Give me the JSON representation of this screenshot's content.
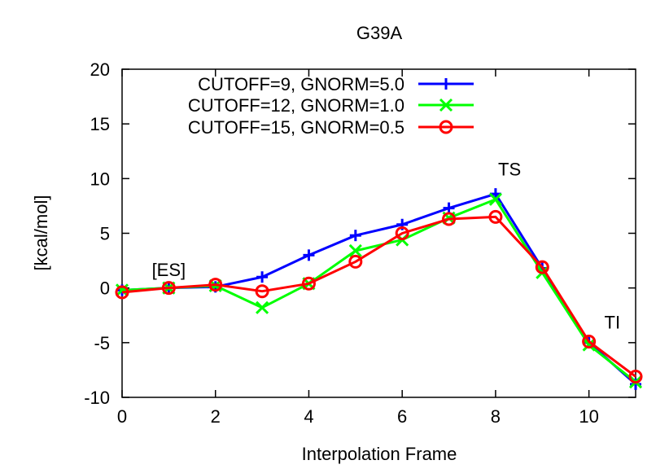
{
  "chart_data": {
    "type": "line",
    "title": "G39A",
    "xlabel": "Interpolation Frame",
    "ylabel": "[kcal/mol]",
    "xlim": [
      0,
      11
    ],
    "ylim": [
      -10,
      20
    ],
    "x_ticks": [
      0,
      2,
      4,
      6,
      8,
      10
    ],
    "y_ticks": [
      -10,
      -5,
      0,
      5,
      10,
      15,
      20
    ],
    "legend_position": "top-right",
    "series": [
      {
        "name": "CUTOFF=9, GNORM=5.0",
        "color": "#0000ff",
        "marker": "plus",
        "x": [
          0,
          1,
          2,
          3,
          4,
          5,
          6,
          7,
          8,
          9,
          10,
          11
        ],
        "values": [
          -0.2,
          0.0,
          0.1,
          1.0,
          3.0,
          4.8,
          5.8,
          7.3,
          8.6,
          1.8,
          -5.0,
          -8.8
        ]
      },
      {
        "name": "CUTOFF=12, GNORM=1.0",
        "color": "#00ff00",
        "marker": "cross",
        "x": [
          0,
          1,
          2,
          3,
          4,
          5,
          6,
          7,
          8,
          9,
          10,
          11
        ],
        "values": [
          -0.2,
          0.0,
          0.2,
          -1.8,
          0.4,
          3.4,
          4.4,
          6.4,
          8.1,
          1.4,
          -5.2,
          -8.6
        ]
      },
      {
        "name": "CUTOFF=15, GNORM=0.5",
        "color": "#ff0000",
        "marker": "circle",
        "x": [
          0,
          1,
          2,
          3,
          4,
          5,
          6,
          7,
          8,
          9,
          10,
          11
        ],
        "values": [
          -0.4,
          0.0,
          0.3,
          -0.3,
          0.4,
          2.4,
          5.0,
          6.3,
          6.5,
          1.9,
          -4.9,
          -8.1
        ]
      }
    ],
    "annotations": [
      {
        "text": "[ES]",
        "x": 1,
        "y": 1.1
      },
      {
        "text": "TS",
        "x": 8.3,
        "y": 10.3
      },
      {
        "text": "TI",
        "x": 10.5,
        "y": -3.7
      }
    ]
  }
}
